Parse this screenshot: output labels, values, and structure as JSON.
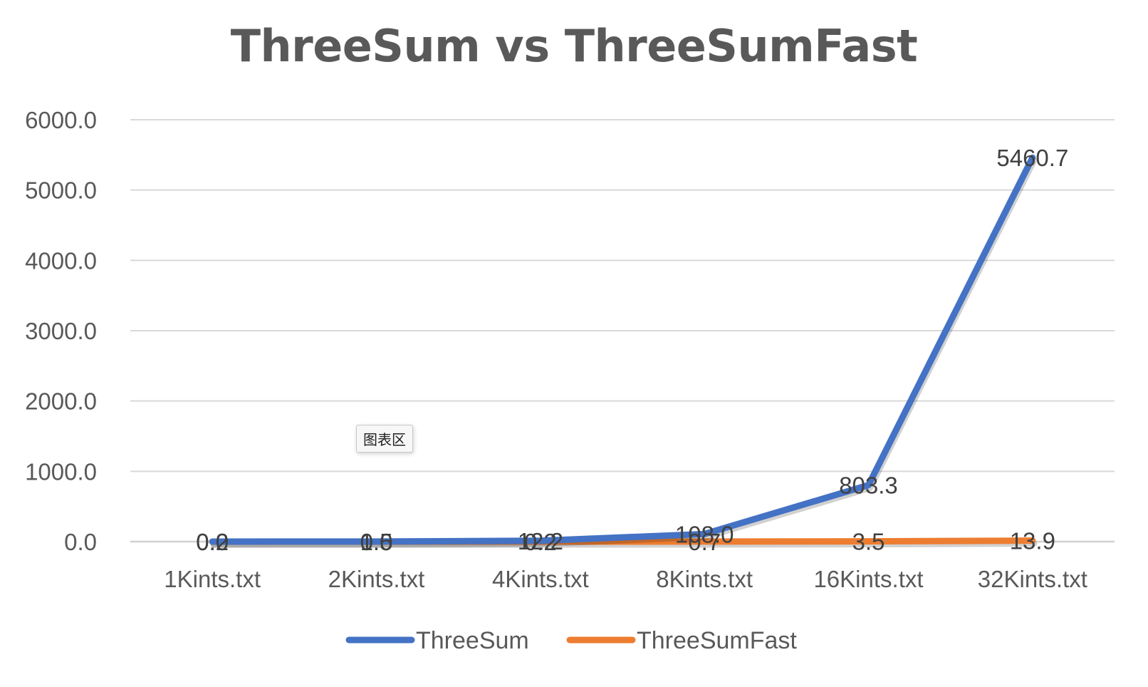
{
  "chart_data": {
    "type": "line",
    "title": "ThreeSum vs ThreeSumFast",
    "xlabel": "",
    "ylabel": "",
    "categories": [
      "1Kints.txt",
      "2Kints.txt",
      "4Kints.txt",
      "8Kints.txt",
      "16Kints.txt",
      "32Kints.txt"
    ],
    "series": [
      {
        "name": "ThreeSum",
        "color": "#4472C4",
        "values": [
          0.2,
          1.5,
          12.2,
          108.0,
          803.3,
          5460.7
        ],
        "labels": [
          "0.2",
          "1.5",
          "12.2",
          "108.0",
          "803.3",
          "5460.7"
        ]
      },
      {
        "name": "ThreeSumFast",
        "color": "#ED7D31",
        "values": [
          0.0,
          0.0,
          0.2,
          0.7,
          3.5,
          13.9
        ],
        "labels": [
          "0.0",
          "0.0",
          "0.2",
          "0.7",
          "3.5",
          "13.9"
        ]
      }
    ],
    "y_ticks": [
      "0.0",
      "1000.0",
      "2000.0",
      "3000.0",
      "4000.0",
      "5000.0",
      "6000.0"
    ],
    "ylim": [
      0,
      6000
    ],
    "grid": true,
    "legend": "bottom"
  },
  "tooltip": {
    "text": "图表区"
  }
}
